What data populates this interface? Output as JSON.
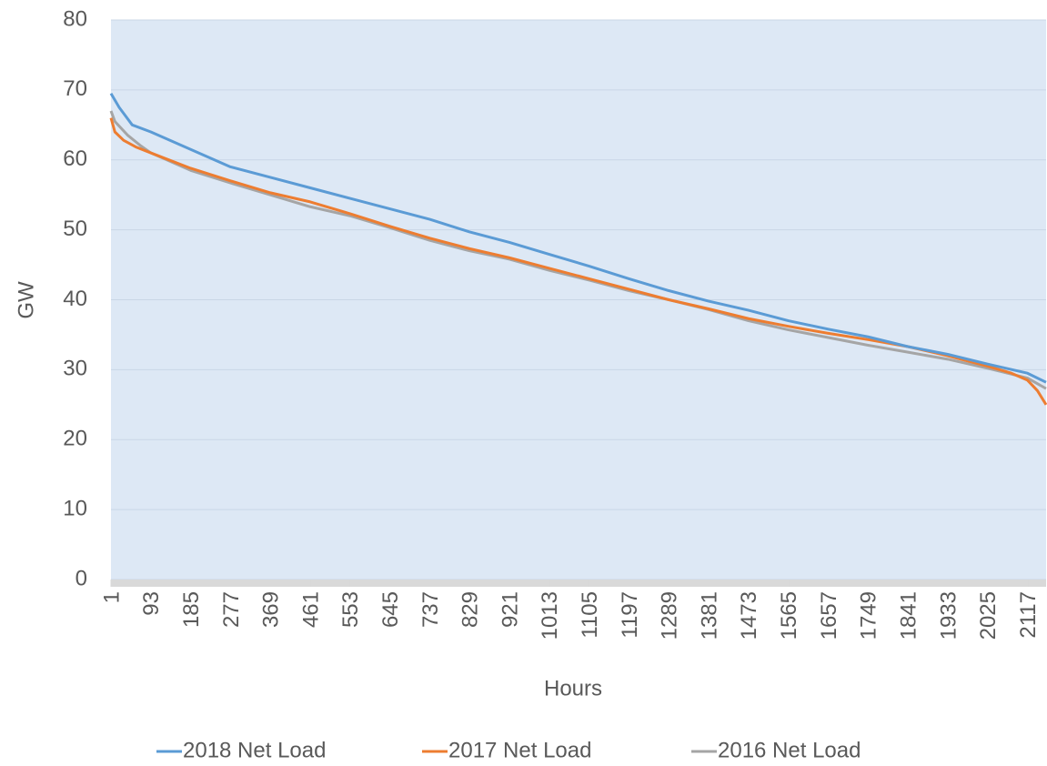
{
  "chart_data": {
    "type": "line",
    "xlabel": "Hours",
    "ylabel": "GW",
    "xlim": [
      1,
      2160
    ],
    "xticks": [
      1,
      93,
      185,
      277,
      369,
      461,
      553,
      645,
      737,
      829,
      921,
      1013,
      1105,
      1197,
      1289,
      1381,
      1473,
      1565,
      1657,
      1749,
      1841,
      1933,
      2025,
      2117
    ],
    "ylim": [
      0,
      80
    ],
    "yticks": [
      0,
      10,
      20,
      30,
      40,
      50,
      60,
      70,
      80
    ],
    "grid": true,
    "legend": "bottom",
    "series": [
      {
        "name": "2018 Net Load",
        "color": "#5b9bd5",
        "x": [
          1,
          20,
          50,
          93,
          185,
          277,
          369,
          461,
          553,
          645,
          737,
          829,
          921,
          1013,
          1105,
          1197,
          1289,
          1381,
          1473,
          1565,
          1657,
          1749,
          1841,
          1933,
          2025,
          2117,
          2160
        ],
        "values": [
          69.5,
          67.5,
          65,
          64,
          61.5,
          59,
          57.5,
          56,
          54.5,
          53,
          51.5,
          49.7,
          48.2,
          46.5,
          44.8,
          43,
          41.3,
          39.8,
          38.5,
          37,
          35.8,
          34.7,
          33.3,
          32.2,
          30.8,
          29.5,
          28.2
        ]
      },
      {
        "name": "2017 Net Load",
        "color": "#ed7d31",
        "x": [
          1,
          10,
          30,
          60,
          93,
          185,
          277,
          369,
          461,
          553,
          645,
          737,
          829,
          921,
          1013,
          1105,
          1197,
          1289,
          1381,
          1473,
          1565,
          1657,
          1749,
          1841,
          1933,
          2025,
          2080,
          2117,
          2140,
          2160
        ],
        "values": [
          66,
          64,
          62.8,
          61.8,
          61,
          58.8,
          57,
          55.3,
          54,
          52.3,
          50.5,
          48.8,
          47.3,
          46,
          44.5,
          43,
          41.5,
          40,
          38.7,
          37.3,
          36.2,
          35.2,
          34.3,
          33.3,
          32,
          30.5,
          29.5,
          28.5,
          27,
          25
        ]
      },
      {
        "name": "2016 Net Load",
        "color": "#a5a5a5",
        "x": [
          1,
          10,
          40,
          70,
          93,
          185,
          277,
          369,
          461,
          553,
          645,
          737,
          829,
          921,
          1013,
          1105,
          1197,
          1289,
          1381,
          1473,
          1565,
          1657,
          1749,
          1841,
          1933,
          2025,
          2117,
          2160
        ],
        "values": [
          67,
          65.5,
          63.5,
          62,
          61,
          58.5,
          56.7,
          55,
          53.3,
          52,
          50.3,
          48.5,
          47,
          45.8,
          44.2,
          42.8,
          41.3,
          40,
          38.6,
          37,
          35.7,
          34.6,
          33.5,
          32.5,
          31.5,
          30.2,
          28.8,
          27.3
        ]
      }
    ]
  }
}
